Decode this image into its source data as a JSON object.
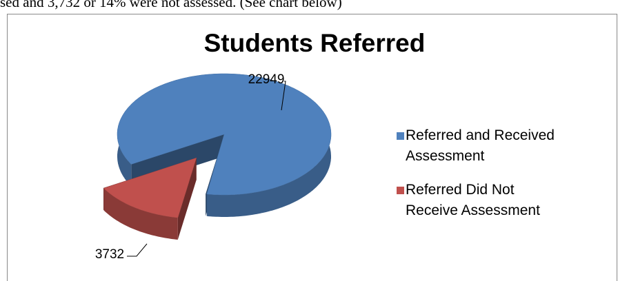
{
  "caption": "sed and 3,732 or 14% were not assessed. (See chart below)",
  "chart_data": {
    "type": "pie",
    "title": "Students Referred",
    "categories": [
      "Referred and Received Assessment",
      "Referred Did Not Receive Assessment"
    ],
    "values": [
      22949,
      3732
    ],
    "colors": [
      "#4f81bd",
      "#c0504d"
    ],
    "legend": "right"
  }
}
